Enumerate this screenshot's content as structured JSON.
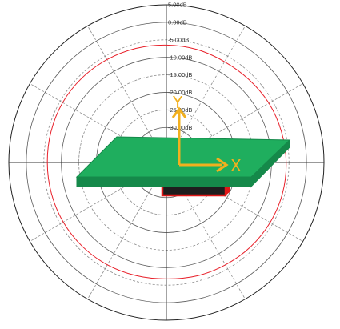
{
  "chart_data": {
    "type": "polar",
    "title": "",
    "radial_axis": {
      "ticks": [
        "5.00dB",
        "0.00dB",
        "-5.00dB",
        "-10.00dB",
        "-15.00dB",
        "-20.00dB",
        "-25.00dB",
        "-30.00dB",
        "-35.00dB"
      ],
      "max_db": 5,
      "min_db": -40,
      "step_db": 5
    },
    "angular_axis": {
      "spoke_step_deg": 30,
      "full_spokes_deg": [
        0,
        90,
        180,
        270
      ]
    },
    "grid": true,
    "series": [
      {
        "color": "#e8202a",
        "theta_deg": [
          0,
          15,
          30,
          45,
          60,
          75,
          90,
          105,
          120,
          135,
          150,
          165,
          180,
          195,
          210,
          225,
          240,
          255,
          270,
          285,
          300,
          315,
          330,
          345
        ],
        "gain_db": [
          -6.5,
          -6.6,
          -6.8,
          -6.6,
          -6.2,
          -6.0,
          -5.8,
          -5.7,
          -5.8,
          -6.0,
          -6.3,
          -6.5,
          -6.8,
          -6.6,
          -6.3,
          -6.1,
          -6.0,
          -6.0,
          -6.0,
          -5.9,
          -5.8,
          -5.9,
          -6.1,
          -6.3
        ]
      }
    ]
  },
  "overlay": {
    "board_color": "#1fae5e",
    "board_edge_color": "#15894a",
    "component_color": "#1e1e1e",
    "component_edge_color": "#e01818",
    "axis_color": "#f2b01e",
    "x_axis_label": "X",
    "y_axis_label": "Y"
  }
}
